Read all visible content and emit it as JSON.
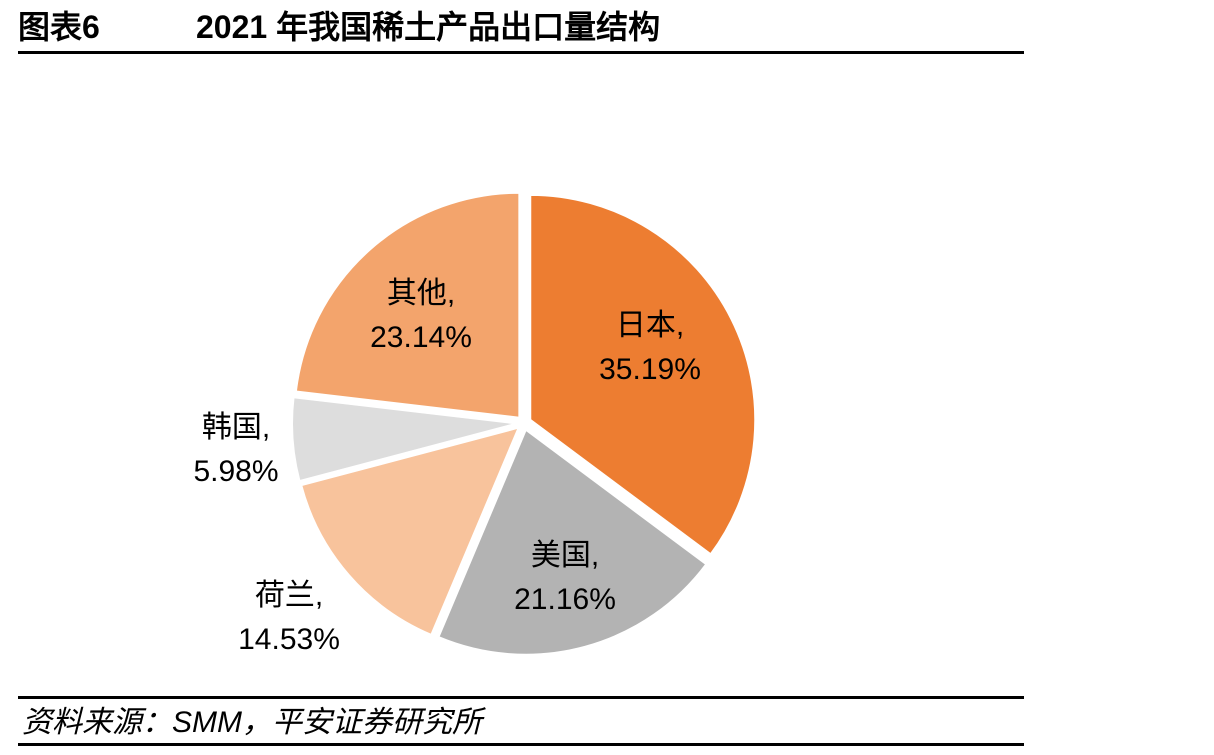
{
  "header": {
    "figure_label": "图表6",
    "title": "2021 年我国稀土产品出口量结构"
  },
  "chart_data": {
    "type": "pie",
    "title": "2021 年我国稀土产品出口量结构",
    "unit": "%",
    "slices": [
      {
        "label": "日本",
        "value": 35.19,
        "value_text": "35.19%",
        "color": "#ED7D31"
      },
      {
        "label": "美国",
        "value": 21.16,
        "value_text": "21.16%",
        "color": "#B3B3B3"
      },
      {
        "label": "荷兰",
        "value": 14.53,
        "value_text": "14.53%",
        "color": "#F8C39C"
      },
      {
        "label": "韩国",
        "value": 5.98,
        "value_text": "5.98%",
        "color": "#DDDDDD"
      },
      {
        "label": "其他",
        "value": 23.14,
        "value_text": "23.14%",
        "color": "#F3A46C"
      }
    ],
    "start_angle": "12 o'clock",
    "direction": "clockwise",
    "slice_border_color": "#FFFFFF",
    "label_separator": ","
  },
  "footer": {
    "source": "资料来源：SMM，平安证券研究所"
  }
}
